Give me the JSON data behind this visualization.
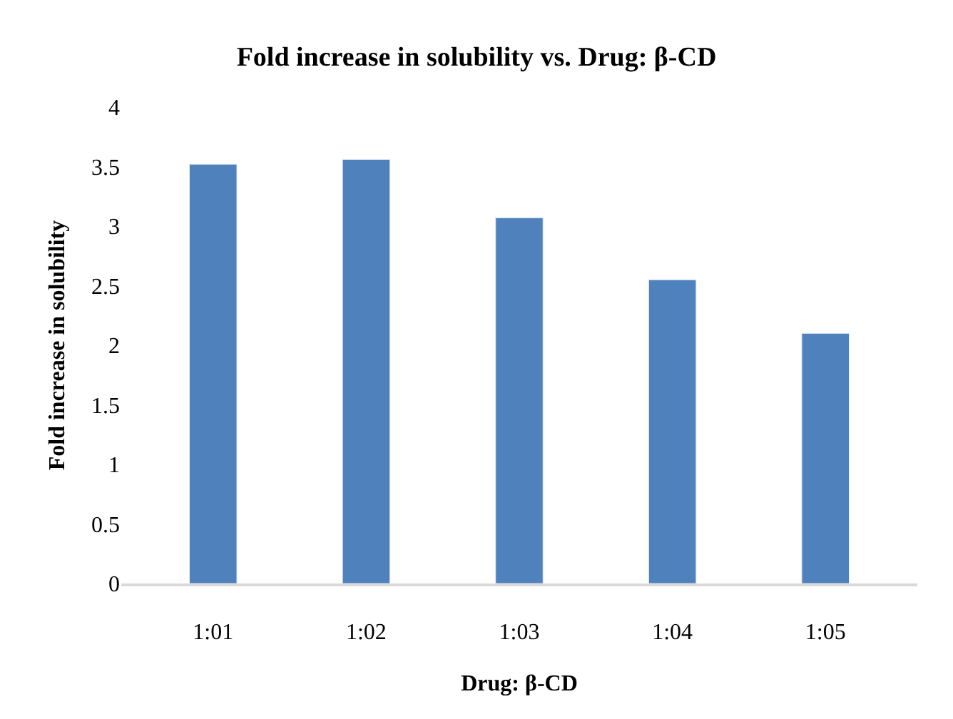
{
  "chart_data": {
    "type": "bar",
    "title": "Fold increase in solubility vs. Drug: β-CD",
    "xlabel": "Drug: β-CD",
    "ylabel": "Fold increase in solubility",
    "categories": [
      "1:01",
      "1:02",
      "1:03",
      "1:04",
      "1:05"
    ],
    "values": [
      3.52,
      3.56,
      3.07,
      2.55,
      2.1
    ],
    "color": "#4f81bd",
    "ylim": [
      0,
      4
    ],
    "yticks": [
      0,
      0.5,
      1,
      1.5,
      2,
      2.5,
      3,
      3.5,
      4
    ],
    "grid": false
  }
}
